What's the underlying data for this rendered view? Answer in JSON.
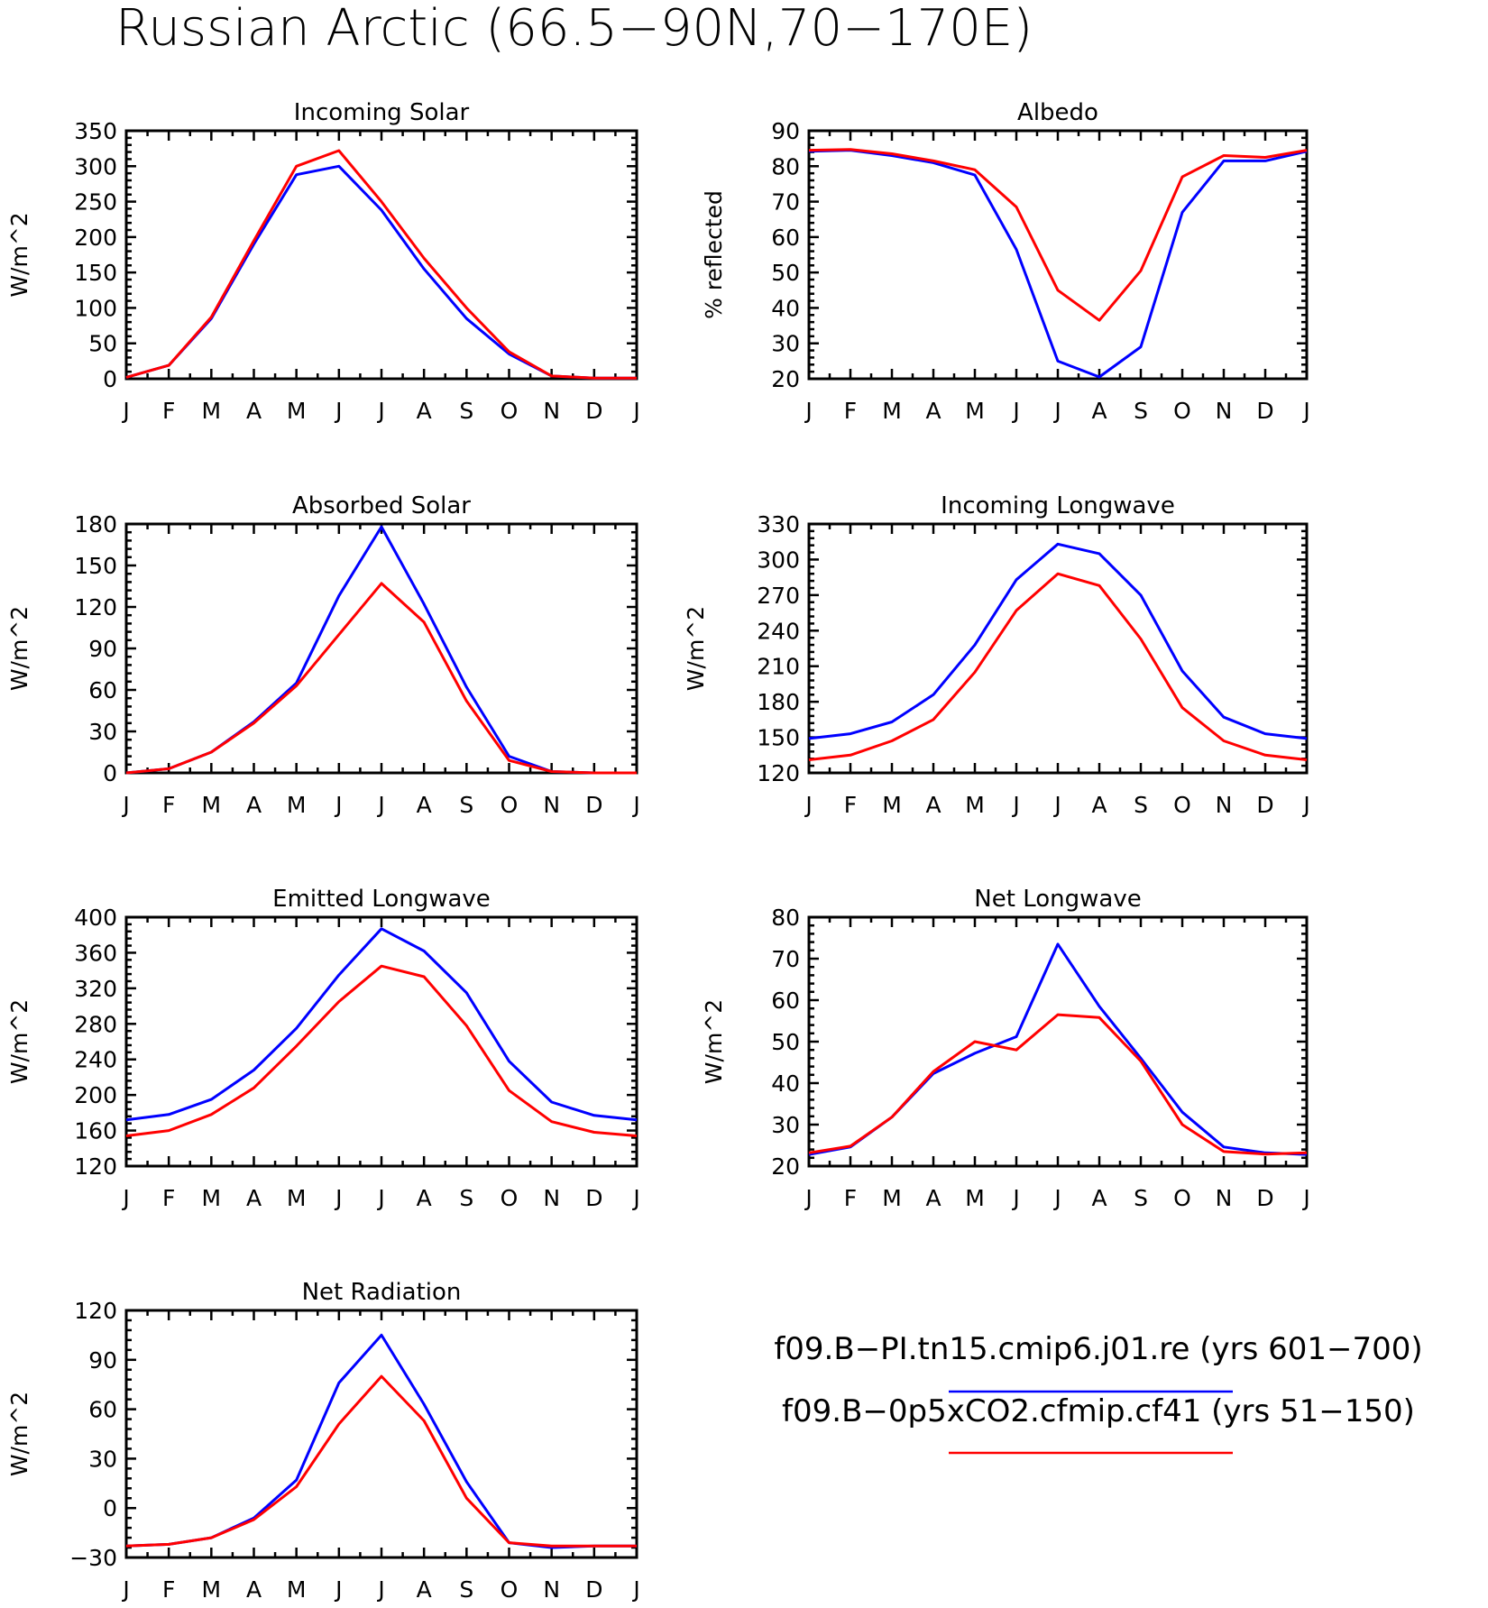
{
  "title": "Russian Arctic (66.5−90N,70−170E)",
  "series_colors": [
    "#0000ff",
    "#ff0000"
  ],
  "legend": [
    {
      "label": "f09.B−PI.tn15.cmip6.j01.re (yrs 601−700)",
      "color": "#0000ff"
    },
    {
      "label": "f09.B−0p5xCO2.cfmip.cf41 (yrs 51−150)",
      "color": "#ff0000"
    }
  ],
  "chart_data": [
    {
      "type": "line",
      "title": "Incoming Solar",
      "xlabel": "",
      "ylabel": "W/m^2",
      "categories": [
        "J",
        "F",
        "M",
        "A",
        "M",
        "J",
        "J",
        "A",
        "S",
        "O",
        "N",
        "D",
        "J"
      ],
      "ylim": [
        0,
        350
      ],
      "yticks": [
        0,
        50,
        100,
        150,
        200,
        250,
        300,
        350
      ],
      "series": [
        {
          "values": [
            2,
            19,
            85,
            190,
            288,
            300,
            238,
            155,
            85,
            35,
            4,
            1,
            1
          ]
        },
        {
          "values": [
            2,
            19,
            87,
            195,
            300,
            322,
            250,
            170,
            100,
            38,
            4,
            1,
            1
          ]
        }
      ]
    },
    {
      "type": "line",
      "title": "Albedo",
      "xlabel": "",
      "ylabel": "% reflected",
      "categories": [
        "J",
        "F",
        "M",
        "A",
        "M",
        "J",
        "J",
        "A",
        "S",
        "O",
        "N",
        "D",
        "J"
      ],
      "ylim": [
        20,
        90
      ],
      "yticks": [
        20,
        30,
        40,
        50,
        60,
        70,
        80,
        90
      ],
      "series": [
        {
          "values": [
            84.2,
            84.5,
            83,
            81,
            77.5,
            56.5,
            25,
            20.5,
            29,
            67,
            81.5,
            81.5,
            84.2
          ]
        },
        {
          "values": [
            84.5,
            84.7,
            83.5,
            81.5,
            79,
            68.5,
            45,
            36.5,
            50.5,
            77,
            83,
            82.5,
            84.5
          ]
        }
      ]
    },
    {
      "type": "line",
      "title": "Absorbed Solar",
      "xlabel": "",
      "ylabel": "W/m^2",
      "categories": [
        "J",
        "F",
        "M",
        "A",
        "M",
        "J",
        "J",
        "A",
        "S",
        "O",
        "N",
        "D",
        "J"
      ],
      "ylim": [
        0,
        180
      ],
      "yticks": [
        0,
        30,
        60,
        90,
        120,
        150,
        180
      ],
      "series": [
        {
          "values": [
            0,
            3,
            15,
            37,
            65,
            128,
            178,
            122,
            62,
            12,
            1,
            0,
            0
          ]
        },
        {
          "values": [
            0,
            3,
            15,
            36,
            63,
            100,
            137,
            109,
            52,
            9,
            1,
            0,
            0
          ]
        }
      ]
    },
    {
      "type": "line",
      "title": "Incoming Longwave",
      "xlabel": "",
      "ylabel": "W/m^2",
      "categories": [
        "J",
        "F",
        "M",
        "A",
        "M",
        "J",
        "J",
        "A",
        "S",
        "O",
        "N",
        "D",
        "J"
      ],
      "ylim": [
        120,
        330
      ],
      "yticks": [
        120,
        150,
        180,
        210,
        240,
        270,
        300,
        330
      ],
      "series": [
        {
          "values": [
            149,
            153,
            163,
            186,
            228,
            283,
            313,
            305,
            270,
            206,
            167,
            153,
            149
          ]
        },
        {
          "values": [
            131,
            135,
            147,
            165,
            205,
            257,
            288,
            278,
            233,
            175,
            147,
            135,
            131
          ]
        }
      ]
    },
    {
      "type": "line",
      "title": "Emitted Longwave",
      "xlabel": "",
      "ylabel": "W/m^2",
      "categories": [
        "J",
        "F",
        "M",
        "A",
        "M",
        "J",
        "J",
        "A",
        "S",
        "O",
        "N",
        "D",
        "J"
      ],
      "ylim": [
        120,
        400
      ],
      "yticks": [
        120,
        160,
        200,
        240,
        280,
        320,
        360,
        400
      ],
      "series": [
        {
          "values": [
            172,
            178,
            195,
            228,
            275,
            335,
            387,
            362,
            315,
            238,
            192,
            177,
            172
          ]
        },
        {
          "values": [
            154,
            160,
            178,
            208,
            255,
            305,
            345,
            333,
            278,
            205,
            170,
            158,
            154
          ]
        }
      ]
    },
    {
      "type": "line",
      "title": "Net Longwave",
      "xlabel": "",
      "ylabel": "W/m^2",
      "categories": [
        "J",
        "F",
        "M",
        "A",
        "M",
        "J",
        "J",
        "A",
        "S",
        "O",
        "N",
        "D",
        "J"
      ],
      "ylim": [
        20,
        80
      ],
      "yticks": [
        20,
        30,
        40,
        50,
        60,
        70,
        80
      ],
      "series": [
        {
          "values": [
            22.8,
            24.6,
            31.8,
            42.3,
            47.2,
            51.2,
            73.5,
            58.5,
            46,
            33,
            24.6,
            23.2,
            22.8
          ]
        },
        {
          "values": [
            23.2,
            24.8,
            31.8,
            42.8,
            50,
            48,
            56.5,
            55.8,
            45.3,
            30,
            23.5,
            22.9,
            23.2
          ]
        }
      ]
    },
    {
      "type": "line",
      "title": "Net Radiation",
      "xlabel": "",
      "ylabel": "W/m^2",
      "categories": [
        "J",
        "F",
        "M",
        "A",
        "M",
        "J",
        "J",
        "A",
        "S",
        "O",
        "N",
        "D",
        "J"
      ],
      "ylim": [
        -30,
        120
      ],
      "yticks": [
        -30,
        0,
        30,
        60,
        90,
        120
      ],
      "series": [
        {
          "values": [
            -23,
            -22,
            -18,
            -6,
            17,
            76,
            105,
            63,
            16,
            -21,
            -24,
            -23,
            -23
          ]
        },
        {
          "values": [
            -23,
            -22,
            -18,
            -7,
            13,
            51,
            80,
            53,
            6,
            -21,
            -23,
            -23,
            -23
          ]
        }
      ]
    }
  ]
}
